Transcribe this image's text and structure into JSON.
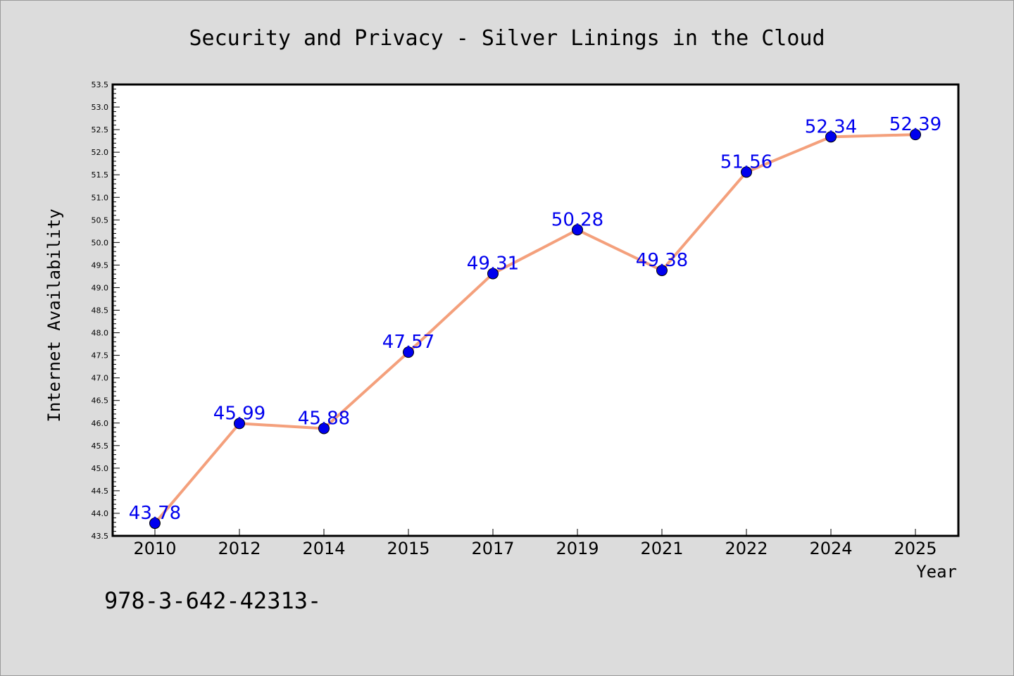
{
  "chart_data": {
    "type": "line",
    "title": "Security and Privacy - Silver Linings in the Cloud",
    "xlabel": "Year",
    "ylabel": "Internet Availability",
    "categories": [
      "2010",
      "2012",
      "2014",
      "2015",
      "2017",
      "2019",
      "2021",
      "2022",
      "2024",
      "2025"
    ],
    "values": [
      43.78,
      45.99,
      45.88,
      47.57,
      49.31,
      50.28,
      49.38,
      51.56,
      52.34,
      52.39
    ],
    "data_labels": [
      "43.78",
      "45.99",
      "45.88",
      "47.57",
      "49.31",
      "50.28",
      "49.38",
      "51.56",
      "52.34",
      "52.39"
    ],
    "ylim": [
      43.5,
      53.5
    ],
    "yticks": [
      "43.5",
      "44.0",
      "44.5",
      "45.0",
      "45.5",
      "46.0",
      "46.5",
      "47.0",
      "47.5",
      "48.0",
      "48.5",
      "49.0",
      "49.5",
      "50.0",
      "50.5",
      "51.0",
      "51.5",
      "52.0",
      "52.5",
      "53.0",
      "53.5"
    ],
    "grid": false,
    "legend": "none",
    "line_color": "#f4a07c",
    "marker_color": "#0000ee",
    "label_color": "#0000ee"
  },
  "footer_text": "978-3-642-42313-"
}
